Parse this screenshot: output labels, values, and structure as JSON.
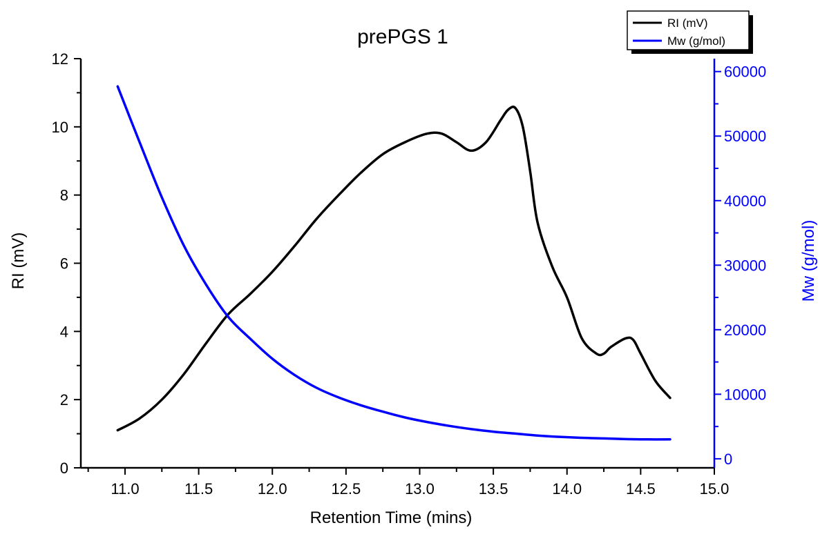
{
  "chart_data": {
    "type": "line",
    "title": "prePGS 1",
    "xlabel": "Retention Time (mins)",
    "ylabel": "RI (mV)",
    "y2label": "Mw (g/mol)",
    "xlim": [
      10.7,
      15.0
    ],
    "ylim": [
      0,
      12
    ],
    "y2lim": [
      -1400,
      62000
    ],
    "x_ticks": [
      "11.0",
      "11.5",
      "12.0",
      "12.5",
      "13.0",
      "13.5",
      "14.0",
      "14.5",
      "15.0"
    ],
    "y_ticks": [
      "0",
      "2",
      "4",
      "6",
      "8",
      "10",
      "12"
    ],
    "y2_ticks": [
      "0",
      "10000",
      "20000",
      "30000",
      "40000",
      "50000",
      "60000"
    ],
    "x_tick_values": [
      11.0,
      11.5,
      12.0,
      12.5,
      13.0,
      13.5,
      14.0,
      14.5,
      15.0
    ],
    "y_tick_values": [
      0,
      2,
      4,
      6,
      8,
      10,
      12
    ],
    "y2_tick_values": [
      0,
      10000,
      20000,
      30000,
      40000,
      50000,
      60000
    ],
    "legend_position": "top-right",
    "grid": false,
    "series": [
      {
        "name": "RI (mV)",
        "axis": "left",
        "color": "#000000",
        "x": [
          10.95,
          11.1,
          11.25,
          11.4,
          11.55,
          11.7,
          11.85,
          12.0,
          12.15,
          12.3,
          12.45,
          12.6,
          12.75,
          12.9,
          13.05,
          13.15,
          13.25,
          13.35,
          13.45,
          13.55,
          13.6,
          13.65,
          13.7,
          13.75,
          13.8,
          13.9,
          14.0,
          14.1,
          14.2,
          14.25,
          14.3,
          14.4,
          14.45,
          14.5,
          14.6,
          14.7
        ],
        "y": [
          1.1,
          1.45,
          2.0,
          2.75,
          3.65,
          4.5,
          5.1,
          5.75,
          6.5,
          7.3,
          8.0,
          8.65,
          9.2,
          9.55,
          9.8,
          9.8,
          9.55,
          9.3,
          9.55,
          10.2,
          10.5,
          10.55,
          10.0,
          8.7,
          7.2,
          5.9,
          5.0,
          3.8,
          3.35,
          3.35,
          3.55,
          3.8,
          3.75,
          3.35,
          2.55,
          2.05
        ]
      },
      {
        "name": "Mw (g/mol)",
        "axis": "right",
        "color": "#0000ff",
        "x": [
          10.95,
          11.1,
          11.25,
          11.4,
          11.55,
          11.7,
          11.85,
          12.0,
          12.15,
          12.3,
          12.45,
          12.6,
          12.75,
          12.9,
          13.05,
          13.2,
          13.35,
          13.5,
          13.65,
          13.8,
          13.95,
          14.1,
          14.25,
          14.4,
          14.55,
          14.7
        ],
        "y": [
          57700,
          49000,
          40500,
          33000,
          27000,
          22000,
          18600,
          15500,
          13000,
          11000,
          9500,
          8300,
          7300,
          6400,
          5700,
          5100,
          4600,
          4200,
          3900,
          3600,
          3400,
          3250,
          3150,
          3050,
          3000,
          3000
        ]
      }
    ]
  }
}
